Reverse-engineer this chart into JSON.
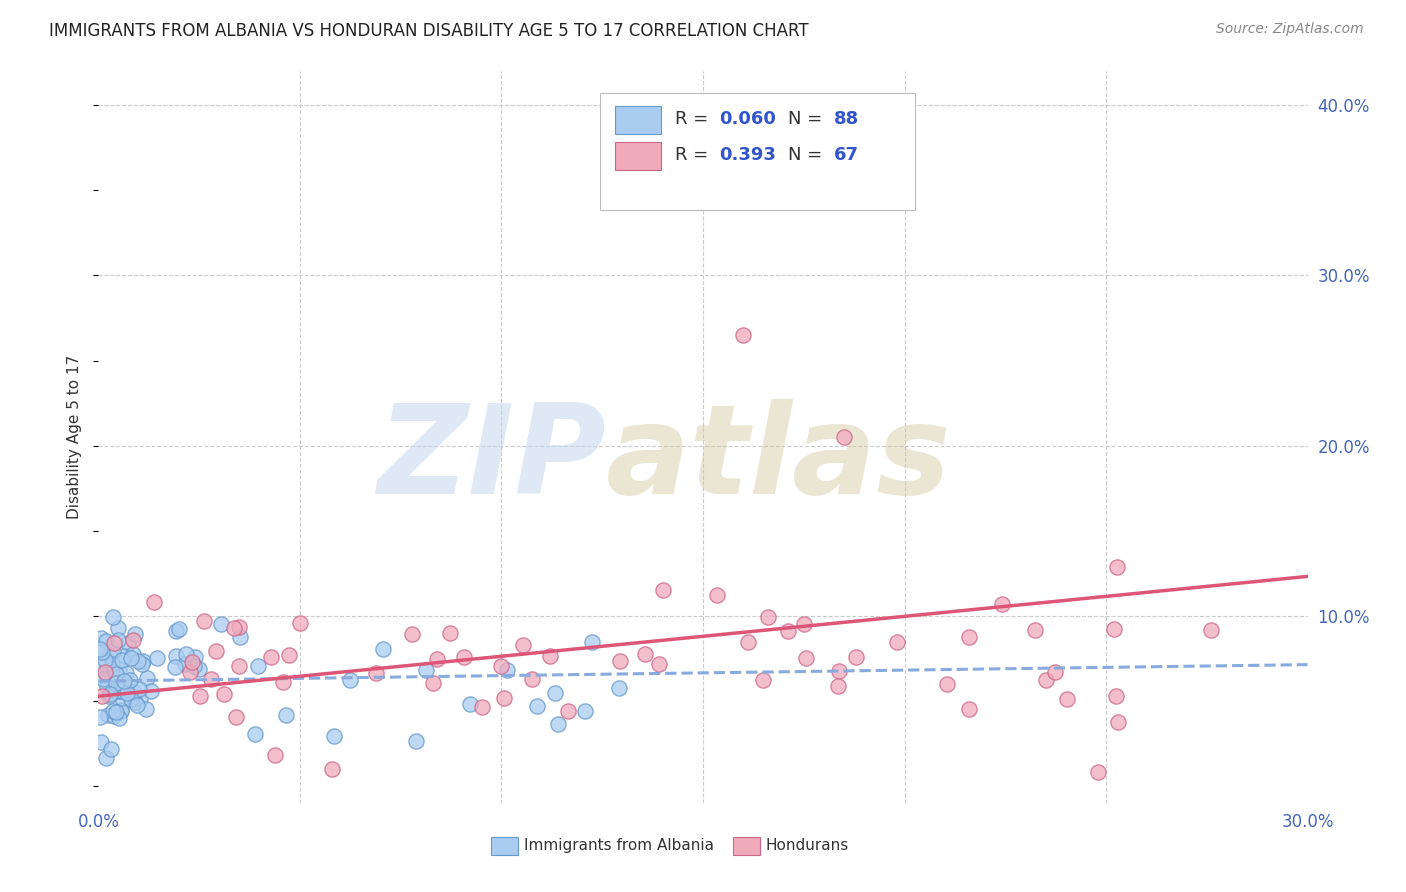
{
  "title": "IMMIGRANTS FROM ALBANIA VS HONDURAN DISABILITY AGE 5 TO 17 CORRELATION CHART",
  "source": "Source: ZipAtlas.com",
  "ylabel": "Disability Age 5 to 17",
  "xlim": [
    0.0,
    0.3
  ],
  "ylim": [
    -0.01,
    0.42
  ],
  "albania_R": 0.06,
  "albania_N": 88,
  "honduras_R": 0.393,
  "honduras_N": 67,
  "albania_color": "#aaccf0",
  "albania_edge": "#6699cc",
  "honduras_color": "#f0aabc",
  "honduras_edge": "#cc6688",
  "albania_line_color": "#88aadd",
  "honduras_line_color": "#dd5577",
  "title_color": "#222222",
  "source_color": "#888888",
  "tick_color": "#4466bb",
  "grid_color": "#cccccc",
  "ylabel_color": "#333333"
}
